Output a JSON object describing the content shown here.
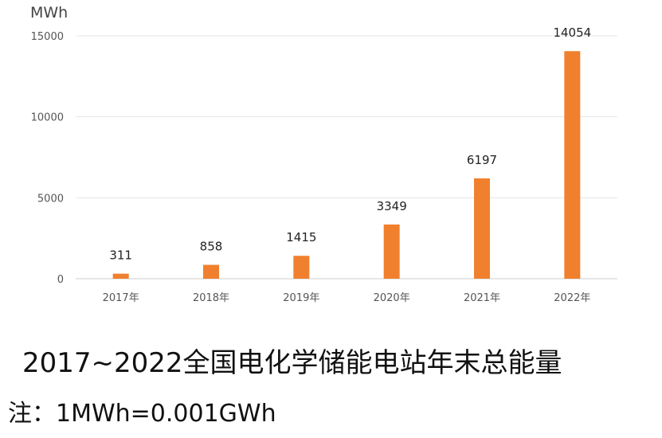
{
  "chart_data": {
    "type": "bar",
    "categories": [
      "2017年",
      "2018年",
      "2019年",
      "2020年",
      "2021年",
      "2022年"
    ],
    "values": [
      311,
      858,
      1415,
      3349,
      6197,
      14054
    ],
    "unit_label": "MWh",
    "yticks": [
      0,
      5000,
      10000,
      15000
    ],
    "ylim": [
      0,
      15000
    ],
    "bar_color": "#F0802E",
    "grid": true
  },
  "caption": "2017~2022全国电化学储能电站年末总能量",
  "note": "注：1MWh=0.001GWh"
}
